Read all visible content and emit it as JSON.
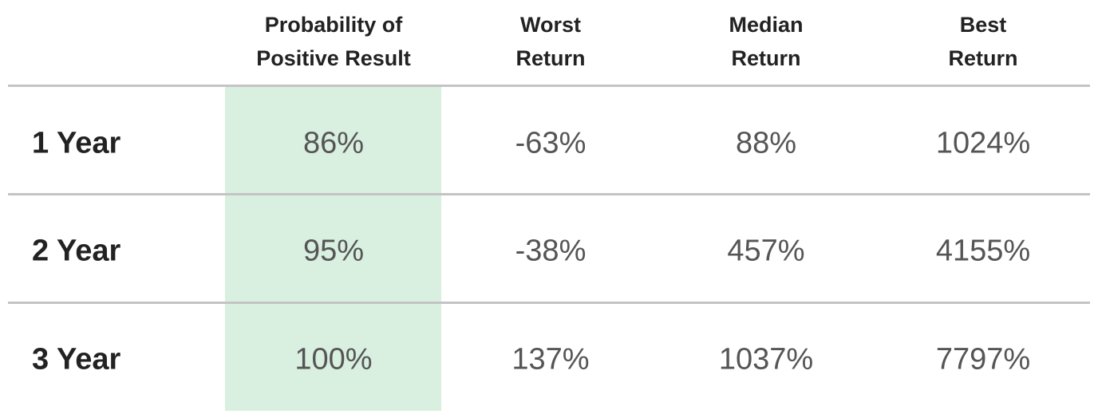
{
  "table": {
    "header": [
      [
        "Probability of",
        "Positive Result"
      ],
      [
        "Worst",
        "Return"
      ],
      [
        "Median",
        "Return"
      ],
      [
        "Best",
        "Return"
      ]
    ],
    "rows": [
      [
        "1 Year",
        "86%",
        "-63%",
        "88%",
        "1024%"
      ],
      [
        "2 Year",
        "95%",
        "-38%",
        "457%",
        "4155%"
      ],
      [
        "3 Year",
        "100%",
        "137%",
        "1037%",
        "7797%"
      ]
    ]
  }
}
